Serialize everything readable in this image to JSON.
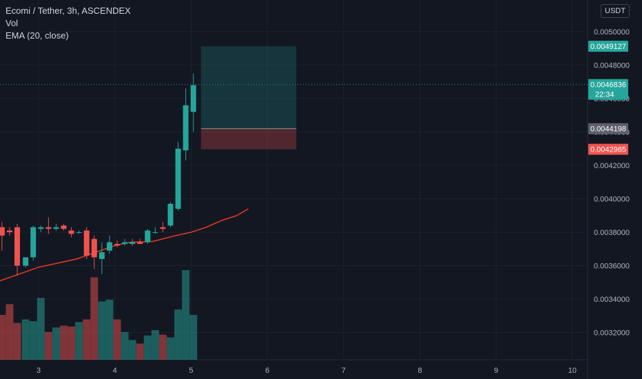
{
  "legend": {
    "symbol": "Ecomi / Tether, 3h, ASCENDEX",
    "volume": "Vol",
    "ema": "EMA (20, close)"
  },
  "currency": "USDT",
  "colors": {
    "background": "#131722",
    "up": "#26a69a",
    "down": "#ef5350",
    "ema": "#e0391f",
    "grid": "#1e222d",
    "profit_zone": "#26a69a",
    "loss_zone": "#ef5350",
    "entry_tag": "#5d606b",
    "last_price_tag": "#26a69a"
  },
  "price_tags": {
    "target": "0.0049127",
    "last_price": "0.0046836",
    "countdown": "22:34",
    "entry": "0.0044198",
    "stop": "0.0042965"
  },
  "chart_data": {
    "type": "candlestick",
    "x_ticks": [
      "3",
      "4",
      "5",
      "6",
      "7",
      "8",
      "9",
      "10"
    ],
    "y_ticks": [
      "0.0050000",
      "0.0048000",
      "0.0046000",
      "0.0044000",
      "0.0042000",
      "0.0040000",
      "0.0038000",
      "0.0036000",
      "0.0034000",
      "0.0032000"
    ],
    "ylim": [
      0.003,
      0.0051
    ],
    "series": [
      {
        "name": "Ecomi / Tether",
        "candles": [
          {
            "x": 2.52,
            "o": 0.00383,
            "h": 0.00386,
            "l": 0.00369,
            "c": 0.00378
          },
          {
            "x": 2.62,
            "o": 0.00381,
            "h": 0.00383,
            "l": 0.00378,
            "c": 0.0038
          },
          {
            "x": 2.72,
            "o": 0.00383,
            "h": 0.00385,
            "l": 0.00354,
            "c": 0.0036
          },
          {
            "x": 2.83,
            "o": 0.0036,
            "h": 0.00364,
            "l": 0.00359,
            "c": 0.00365
          },
          {
            "x": 2.93,
            "o": 0.00365,
            "h": 0.00384,
            "l": 0.00363,
            "c": 0.00383
          },
          {
            "x": 3.03,
            "o": 0.00382,
            "h": 0.00384,
            "l": 0.0038,
            "c": 0.00383
          },
          {
            "x": 3.13,
            "o": 0.00383,
            "h": 0.00389,
            "l": 0.00379,
            "c": 0.00382
          },
          {
            "x": 3.23,
            "o": 0.00382,
            "h": 0.00385,
            "l": 0.00381,
            "c": 0.00383
          },
          {
            "x": 3.33,
            "o": 0.00384,
            "h": 0.00385,
            "l": 0.00381,
            "c": 0.00382
          },
          {
            "x": 3.43,
            "o": 0.00381,
            "h": 0.00383,
            "l": 0.00377,
            "c": 0.00379
          },
          {
            "x": 3.53,
            "o": 0.0038,
            "h": 0.00381,
            "l": 0.00379,
            "c": 0.0038
          },
          {
            "x": 3.63,
            "o": 0.00381,
            "h": 0.00383,
            "l": 0.00364,
            "c": 0.00366
          },
          {
            "x": 3.73,
            "o": 0.00376,
            "h": 0.00378,
            "l": 0.00358,
            "c": 0.00365
          },
          {
            "x": 3.83,
            "o": 0.00364,
            "h": 0.00374,
            "l": 0.00355,
            "c": 0.00368
          },
          {
            "x": 3.93,
            "o": 0.00369,
            "h": 0.00378,
            "l": 0.00367,
            "c": 0.00374
          },
          {
            "x": 4.03,
            "o": 0.00373,
            "h": 0.00375,
            "l": 0.00371,
            "c": 0.00372
          },
          {
            "x": 4.13,
            "o": 0.00373,
            "h": 0.00376,
            "l": 0.00372,
            "c": 0.00374
          },
          {
            "x": 4.23,
            "o": 0.00373,
            "h": 0.00376,
            "l": 0.00372,
            "c": 0.00374
          },
          {
            "x": 4.33,
            "o": 0.00374,
            "h": 0.00376,
            "l": 0.00373,
            "c": 0.00373
          },
          {
            "x": 4.43,
            "o": 0.00374,
            "h": 0.00382,
            "l": 0.00373,
            "c": 0.00381
          },
          {
            "x": 4.53,
            "o": 0.0038,
            "h": 0.00383,
            "l": 0.00379,
            "c": 0.0038
          },
          {
            "x": 4.63,
            "o": 0.00383,
            "h": 0.00386,
            "l": 0.0038,
            "c": 0.00382
          },
          {
            "x": 4.73,
            "o": 0.00384,
            "h": 0.00398,
            "l": 0.00383,
            "c": 0.00397
          },
          {
            "x": 4.83,
            "o": 0.00394,
            "h": 0.00434,
            "l": 0.00393,
            "c": 0.0043
          },
          {
            "x": 4.93,
            "o": 0.00429,
            "h": 0.00466,
            "l": 0.00423,
            "c": 0.00456
          },
          {
            "x": 5.03,
            "o": 0.00452,
            "h": 0.00475,
            "l": 0.0044,
            "c": 0.00468
          }
        ],
        "volume": [
          0.5,
          0.62,
          0.41,
          0.45,
          0.43,
          0.69,
          0.31,
          0.36,
          0.38,
          0.37,
          0.42,
          0.45,
          0.92,
          0.65,
          0.67,
          0.45,
          0.31,
          0.22,
          0.18,
          0.27,
          0.33,
          0.28,
          0.25,
          0.56,
          1.0,
          0.5
        ]
      },
      {
        "name": "EMA (20, close)",
        "x": [
          2.0,
          2.5,
          3.0,
          3.5,
          4.0,
          4.2,
          4.5,
          4.8,
          5.0,
          5.2,
          5.4,
          5.6,
          5.75
        ],
        "values": [
          0.00342,
          0.00351,
          0.00359,
          0.00364,
          0.00372,
          0.00374,
          0.003745,
          0.00378,
          0.0038,
          0.00383,
          0.00387,
          0.0039,
          0.00394
        ]
      }
    ],
    "position": {
      "target": 0.0049127,
      "entry": 0.0044198,
      "stop": 0.0042965,
      "x_start": 5.13,
      "x_end": 6.38
    },
    "last_price": 0.0046836,
    "grid": true
  }
}
